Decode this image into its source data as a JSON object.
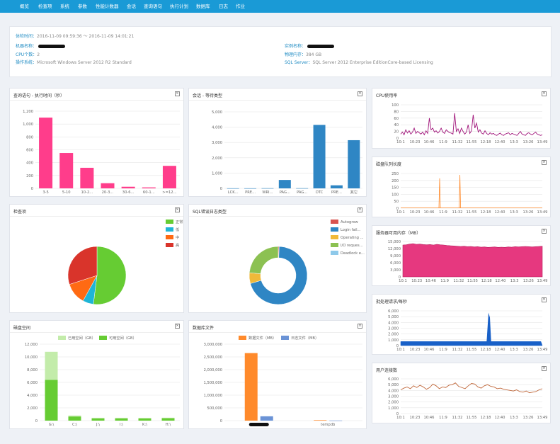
{
  "nav": [
    "概览",
    "检查项",
    "系统",
    "参数",
    "性能计数器",
    "会话",
    "查询语句",
    "执行计划",
    "数据库",
    "日志",
    "作业"
  ],
  "info": {
    "time_label": "体检时间：",
    "time_value": "2016-11-09 09:59:36 ～ 2016-11-09 14:01:21",
    "machine_label": "机器名称：",
    "instance_label": "实例名称：",
    "cpu_label": "CPU个数：",
    "cpu_value": "2",
    "mem_label": "物理内存：",
    "mem_value": "384 GB",
    "os_label": "操作系统：",
    "os_value": "Microsoft Windows Server 2012 R2 Standard",
    "sql_label": "SQL Server：",
    "sql_value": "SQL Server 2012 Enterprise EditionCore-based Licensing"
  },
  "panels": {
    "query_time": "查询语句 - 执行时间（秒）",
    "wait_types": "会话 - 等待类型",
    "cpu": "CPU使用率",
    "disk_queue": "磁盘队列长度",
    "server_mem": "服务器可用内存（MB）",
    "batch_req": "批处理请求/每秒",
    "user_conn": "用户连接数",
    "checks": "检查项",
    "sql_errors": "SQL错误日志类型",
    "disk_space": "磁盘空间",
    "db_files": "数据库文件"
  },
  "close_glyph": "×",
  "colors": {
    "nav": "#1a9ad6",
    "pink": "#ff3d8b",
    "blue": "#2f86c4",
    "cpu_line": "#a0147a",
    "orange": "#ff8a2b",
    "mem_area": "#e6387f",
    "batch": "#1860c8",
    "conn": "#c0673a",
    "green": "#66cc33",
    "light_green": "#c3ecaa"
  },
  "chart_data": [
    {
      "id": "query_time",
      "type": "bar",
      "categories": [
        "3-5",
        "5-10",
        "10-2...",
        "20-3...",
        "30-6...",
        "60-1...",
        ">=12..."
      ],
      "values": [
        1100,
        550,
        320,
        80,
        25,
        15,
        350
      ],
      "ylim": [
        0,
        1200
      ],
      "yticks": [
        "0",
        "200",
        "400",
        "600",
        "800",
        "1,000",
        "1,200"
      ]
    },
    {
      "id": "wait_types",
      "type": "bar",
      "categories": [
        "LCK...",
        "PRE...",
        "WRI...",
        "PAG...",
        "PAG...",
        "DTC",
        "PRE...",
        "其它"
      ],
      "values": [
        5,
        5,
        10,
        550,
        10,
        4150,
        200,
        3150
      ],
      "ylim": [
        0,
        5000
      ],
      "yticks": [
        "0",
        "1,000",
        "2,000",
        "3,000",
        "4,000",
        "5,000"
      ]
    },
    {
      "id": "cpu",
      "type": "line",
      "x_labels": [
        "10:1",
        "10:23",
        "10:46",
        "11:9",
        "11:32",
        "11:55",
        "12:18",
        "12:40",
        "13:3",
        "13:26",
        "13:49"
      ],
      "yticks": [
        "0",
        "20",
        "40",
        "60",
        "80",
        "100"
      ],
      "ylim": [
        0,
        100
      ],
      "values": [
        12,
        18,
        10,
        25,
        15,
        22,
        12,
        18,
        30,
        14,
        20,
        16,
        12,
        18,
        10,
        22,
        14,
        60,
        25,
        30,
        18,
        22,
        15,
        20,
        30,
        18,
        14,
        25,
        20,
        16,
        15,
        12,
        75,
        20,
        28,
        14,
        30,
        20,
        12,
        18,
        40,
        14,
        22,
        70,
        30,
        45,
        18,
        25,
        15,
        12,
        22,
        14,
        10,
        16,
        12,
        14,
        10,
        8,
        12,
        15,
        10,
        8,
        12,
        14,
        16,
        10,
        14,
        12,
        10,
        8,
        14,
        20,
        12,
        10,
        8,
        14,
        16,
        12,
        10,
        14,
        18,
        12,
        10,
        8,
        10
      ]
    },
    {
      "id": "disk_queue",
      "type": "line",
      "x_labels": [
        "10:1",
        "10:23",
        "10:46",
        "11:9",
        "11:32",
        "11:55",
        "12:18",
        "12:40",
        "13:3",
        "13:26",
        "13:49"
      ],
      "yticks": [
        "0",
        "50",
        "100",
        "150",
        "200",
        "250"
      ],
      "ylim": [
        0,
        250
      ],
      "spikes": [
        {
          "at": 0.275,
          "value": 215
        },
        {
          "at": 0.418,
          "value": 240
        }
      ]
    },
    {
      "id": "server_mem",
      "type": "area",
      "x_labels": [
        "10:1",
        "10:23",
        "10:46",
        "11:9",
        "11:32",
        "11:55",
        "12:18",
        "12:40",
        "13:3",
        "13:26",
        "13:49"
      ],
      "yticks": [
        "0",
        "3,000",
        "6,000",
        "9,000",
        "12,000",
        "15,000"
      ],
      "ylim": [
        0,
        15000
      ],
      "values": [
        13500,
        13600,
        13900,
        14100,
        13800,
        13900,
        13700,
        13600,
        13700,
        13500,
        13800,
        13600,
        13500,
        13300,
        13200,
        13100,
        13000,
        12900,
        13000,
        12800,
        12900,
        12700,
        12800,
        12600,
        12700,
        12500,
        12600,
        12700,
        12500,
        12600,
        12500,
        12700,
        12600,
        12800,
        12700,
        12800,
        12900,
        12800,
        12700,
        12800,
        12900,
        13000
      ]
    },
    {
      "id": "batch_req",
      "type": "area",
      "x_labels": [
        "10:1",
        "10:23",
        "10:46",
        "11:9",
        "11:32",
        "11:55",
        "12:18",
        "12:40",
        "13:3",
        "13:26",
        "13:49"
      ],
      "yticks": [
        "0",
        "1,000",
        "2,000",
        "3,000",
        "4,000",
        "5,000",
        "6,000"
      ],
      "ylim": [
        0,
        6000
      ],
      "base": 700,
      "spike_at": 0.625,
      "spike_value": 5700
    },
    {
      "id": "user_conn",
      "type": "line",
      "x_labels": [
        "10:1",
        "10:23",
        "10:46",
        "11:9",
        "11:32",
        "11:55",
        "12:18",
        "12:40",
        "13:3",
        "13:26",
        "13:49"
      ],
      "yticks": [
        "0",
        "1,000",
        "2,000",
        "3,000",
        "4,000",
        "5,000",
        "6,000"
      ],
      "ylim": [
        0,
        6000
      ],
      "values": [
        4100,
        4400,
        4600,
        4300,
        4800,
        4500,
        4900,
        4600,
        4200,
        4500,
        5100,
        4800,
        4300,
        4600,
        4500,
        4900,
        5000,
        5300,
        4700,
        4500,
        4300,
        4800,
        5200,
        5100,
        4600,
        4400,
        4800,
        5000,
        4700,
        4600,
        4300,
        4400,
        4200,
        4100,
        4000,
        3900,
        4100,
        3800,
        3700,
        3900,
        3600,
        3700,
        3800,
        4100,
        4300
      ]
    },
    {
      "id": "checks",
      "type": "pie",
      "legend": [
        "正常",
        "低",
        "中",
        "高"
      ],
      "values": [
        0.52,
        0.06,
        0.12,
        0.3
      ],
      "colors": [
        "#66cc33",
        "#1fb5d6",
        "#ff6a13",
        "#d9342b"
      ]
    },
    {
      "id": "sql_errors",
      "type": "pie",
      "legend": [
        "Autogrow",
        "Login fail...",
        "Operating ...",
        "I/O reques...",
        "Deadlock e..."
      ],
      "values": [
        0.005,
        0.7,
        0.06,
        0.235,
        0.0
      ],
      "colors": [
        "#d9534f",
        "#2f86c4",
        "#f0b93a",
        "#8cc152",
        "#8ec9ea"
      ]
    },
    {
      "id": "disk_space",
      "type": "bar",
      "series": [
        {
          "name": "已用空间（GB）",
          "values": [
            4400,
            150,
            100,
            100,
            80,
            80
          ]
        },
        {
          "name": "可用空间（GB）",
          "values": [
            6400,
            650,
            350,
            350,
            350,
            380
          ]
        }
      ],
      "categories": [
        "G:\\",
        "C:\\",
        "J:\\",
        "I:\\",
        "K:\\",
        "H:\\"
      ],
      "ylim": [
        0,
        12000
      ],
      "yticks": [
        "0",
        "2,000",
        "4,000",
        "6,000",
        "8,000",
        "10,000",
        "12,000"
      ]
    },
    {
      "id": "db_files",
      "type": "bar",
      "series": [
        {
          "name": "数据文件（MB）",
          "values": [
            2650000,
            20000
          ]
        },
        {
          "name": "日志文件（MB）",
          "values": [
            170000,
            5000
          ]
        }
      ],
      "categories": [
        "",
        "tempdb"
      ],
      "ylim": [
        0,
        3000000
      ],
      "yticks": [
        "0",
        "500,000",
        "1,000,000",
        "1,500,000",
        "2,000,000",
        "2,500,000",
        "3,000,000"
      ]
    }
  ]
}
